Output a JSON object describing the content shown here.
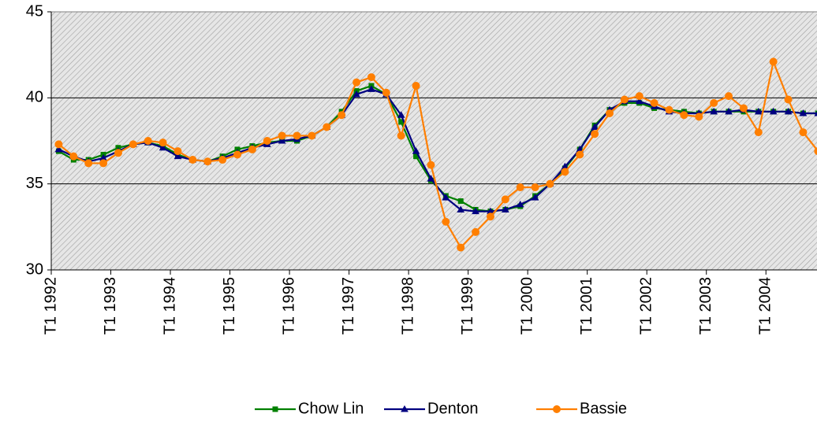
{
  "chart_data": {
    "type": "line",
    "categories": [
      "T1 1992",
      null,
      null,
      null,
      "T1 1993",
      null,
      null,
      null,
      "T1 1994",
      null,
      null,
      null,
      "T1 1995",
      null,
      null,
      null,
      "T1 1996",
      null,
      null,
      null,
      "T1 1997",
      null,
      null,
      null,
      "T1 1998",
      null,
      null,
      null,
      "T1 1999",
      null,
      null,
      null,
      "T1 2000",
      null,
      null,
      null,
      "T1 2001",
      null,
      null,
      null,
      "T1 2002",
      null,
      null,
      null,
      "T1 2003",
      null,
      null,
      null,
      "T1 2004",
      null,
      null,
      null
    ],
    "series": [
      {
        "name": "Chow Lin",
        "color": "#008000",
        "marker": "square",
        "values": [
          36.9,
          36.4,
          36.4,
          36.7,
          37.1,
          37.3,
          37.4,
          37.2,
          36.7,
          36.4,
          36.3,
          36.6,
          37.0,
          37.2,
          37.4,
          37.5,
          37.5,
          37.8,
          38.3,
          39.2,
          40.4,
          40.7,
          40.2,
          38.6,
          36.6,
          35.2,
          34.3,
          34.0,
          33.5,
          33.4,
          33.5,
          33.7,
          34.3,
          35.0,
          35.9,
          37.0,
          38.4,
          39.3,
          39.7,
          39.7,
          39.4,
          39.3,
          39.2,
          39.1,
          39.2,
          39.2,
          39.2,
          39.2,
          39.2,
          39.2,
          39.1,
          39.1
        ]
      },
      {
        "name": "Denton",
        "color": "#000080",
        "marker": "triangle",
        "values": [
          37.0,
          36.6,
          36.3,
          36.5,
          36.9,
          37.3,
          37.4,
          37.1,
          36.6,
          36.4,
          36.3,
          36.5,
          36.8,
          37.1,
          37.3,
          37.5,
          37.6,
          37.8,
          38.3,
          39.0,
          40.2,
          40.5,
          40.2,
          39.0,
          36.9,
          35.3,
          34.2,
          33.5,
          33.4,
          33.4,
          33.5,
          33.8,
          34.2,
          35.0,
          36.0,
          37.0,
          38.3,
          39.3,
          39.8,
          39.8,
          39.5,
          39.2,
          39.1,
          39.1,
          39.2,
          39.2,
          39.3,
          39.2,
          39.2,
          39.2,
          39.1,
          39.1
        ]
      },
      {
        "name": "Bassie",
        "color": "#ff7f00",
        "marker": "circle",
        "values": [
          37.3,
          36.6,
          36.2,
          36.2,
          36.8,
          37.3,
          37.5,
          37.4,
          36.9,
          36.4,
          36.3,
          36.4,
          36.7,
          37.0,
          37.5,
          37.8,
          37.8,
          37.8,
          38.3,
          39.0,
          40.9,
          41.2,
          40.3,
          37.8,
          40.7,
          36.1,
          32.8,
          31.3,
          32.2,
          33.1,
          34.1,
          34.8,
          34.8,
          35.0,
          35.7,
          36.7,
          37.9,
          39.1,
          39.9,
          40.1,
          39.7,
          39.3,
          39.0,
          38.9,
          39.7,
          40.1,
          39.4,
          38.0,
          42.1,
          39.9,
          38.0,
          36.9
        ]
      }
    ],
    "ylim": [
      30,
      45
    ],
    "yticks": [
      30,
      35,
      40,
      45
    ],
    "grid": true,
    "legend": "bottom"
  }
}
